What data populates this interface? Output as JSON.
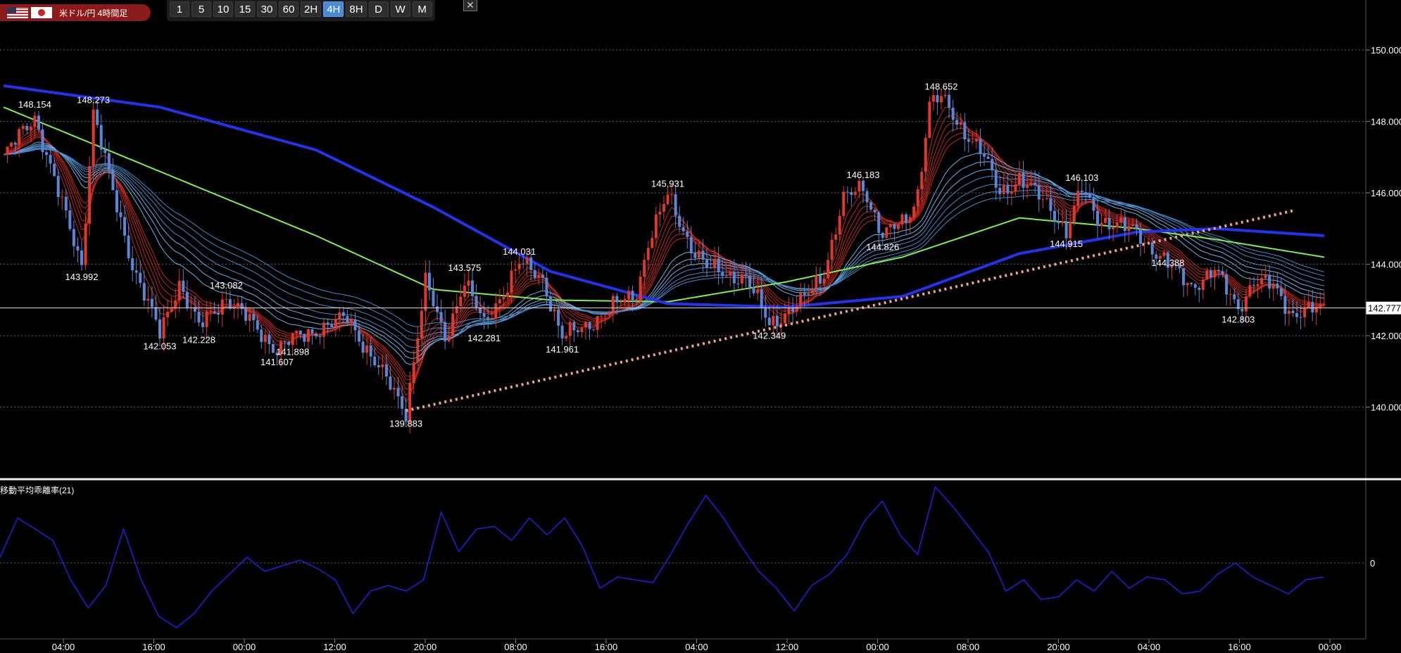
{
  "header": {
    "pair_label": "米ドル/円 4時間足",
    "flags": [
      "us-flag-icon",
      "jp-flag-icon"
    ],
    "timeframes": [
      "1",
      "5",
      "10",
      "15",
      "30",
      "60",
      "2H",
      "4H",
      "8H",
      "D",
      "W",
      "M"
    ],
    "active_timeframe": "4H",
    "close_icon": "close-icon"
  },
  "indicator": {
    "label": "移動平均乖離率(21)",
    "zero_label": "0"
  },
  "colors": {
    "up": "#e0392b",
    "down": "#5b86d6",
    "ma_long": "#2233ee",
    "ma_green": "#80ee50",
    "trend": "#f0a090",
    "osc": "#2020e0"
  },
  "chart_data": {
    "type": "candlestick",
    "ylim": [
      138.2,
      151.4
    ],
    "y_ticks": [
      "150.000",
      "148.000",
      "146.000",
      "144.000",
      "142.000",
      "140.000"
    ],
    "x_ticks": [
      "04:00",
      "16:00",
      "00:00",
      "12:00",
      "20:00",
      "08:00",
      "16:00",
      "04:00",
      "12:00",
      "00:00",
      "08:00",
      "20:00",
      "04:00",
      "16:00",
      "00:00"
    ],
    "current_price": "142.777",
    "current_value": 142.777,
    "annotations": [
      {
        "label": "148.154",
        "v": 148.154
      },
      {
        "label": "148.273",
        "v": 148.273
      },
      {
        "label": "143.992",
        "v": 143.992
      },
      {
        "label": "142.053",
        "v": 142.053
      },
      {
        "label": "142.228",
        "v": 142.228
      },
      {
        "label": "143.082",
        "v": 143.082
      },
      {
        "label": "141.607",
        "v": 141.607
      },
      {
        "label": "141.898",
        "v": 141.898
      },
      {
        "label": "139.883",
        "v": 139.883
      },
      {
        "label": "143.575",
        "v": 143.575
      },
      {
        "label": "142.281",
        "v": 142.281
      },
      {
        "label": "144.031",
        "v": 144.031
      },
      {
        "label": "141.961",
        "v": 141.961
      },
      {
        "label": "145.931",
        "v": 145.931
      },
      {
        "label": "142.349",
        "v": 142.349
      },
      {
        "label": "146.183",
        "v": 146.183
      },
      {
        "label": "144.826",
        "v": 144.826
      },
      {
        "label": "148.652",
        "v": 148.652
      },
      {
        "label": "146.103",
        "v": 146.103
      },
      {
        "label": "144.915",
        "v": 144.915
      },
      {
        "label": "144.388",
        "v": 144.388
      },
      {
        "label": "142.803",
        "v": 142.803
      }
    ],
    "price_path": [
      [
        0,
        147.0
      ],
      [
        8,
        148.15
      ],
      [
        14,
        146.0
      ],
      [
        20,
        143.99
      ],
      [
        23,
        148.27
      ],
      [
        28,
        146.0
      ],
      [
        33,
        144.0
      ],
      [
        40,
        142.05
      ],
      [
        45,
        143.5
      ],
      [
        50,
        142.23
      ],
      [
        57,
        143.08
      ],
      [
        63,
        142.4
      ],
      [
        70,
        141.61
      ],
      [
        74,
        141.9
      ],
      [
        88,
        142.5
      ],
      [
        103,
        139.88
      ],
      [
        108,
        143.5
      ],
      [
        113,
        141.9
      ],
      [
        118,
        143.57
      ],
      [
        123,
        142.28
      ],
      [
        132,
        144.03
      ],
      [
        138,
        143.6
      ],
      [
        143,
        141.96
      ],
      [
        148,
        142.2
      ],
      [
        156,
        142.8
      ],
      [
        162,
        143.2
      ],
      [
        165,
        144.6
      ],
      [
        170,
        145.93
      ],
      [
        176,
        144.5
      ],
      [
        180,
        143.9
      ],
      [
        190,
        143.6
      ],
      [
        196,
        142.35
      ],
      [
        204,
        142.9
      ],
      [
        210,
        143.8
      ],
      [
        215,
        145.8
      ],
      [
        220,
        146.18
      ],
      [
        225,
        144.83
      ],
      [
        231,
        145.2
      ],
      [
        234,
        146.0
      ],
      [
        237,
        148.5
      ],
      [
        240,
        148.65
      ],
      [
        244,
        148.0
      ],
      [
        250,
        147.2
      ],
      [
        255,
        146.0
      ],
      [
        260,
        146.4
      ],
      [
        268,
        145.6
      ],
      [
        272,
        144.92
      ],
      [
        276,
        146.1
      ],
      [
        280,
        145.3
      ],
      [
        290,
        144.9
      ],
      [
        298,
        144.0
      ],
      [
        304,
        143.4
      ],
      [
        310,
        143.8
      ],
      [
        316,
        142.8
      ],
      [
        320,
        143.5
      ],
      [
        325,
        143.4
      ],
      [
        330,
        142.6
      ],
      [
        338,
        142.777
      ]
    ],
    "ma_long": [
      [
        0,
        149.0
      ],
      [
        40,
        148.4
      ],
      [
        80,
        147.2
      ],
      [
        110,
        145.6
      ],
      [
        140,
        143.8
      ],
      [
        170,
        142.9
      ],
      [
        200,
        142.8
      ],
      [
        230,
        143.1
      ],
      [
        260,
        144.3
      ],
      [
        290,
        144.9
      ],
      [
        310,
        145.0
      ],
      [
        338,
        144.8
      ]
    ],
    "ma_green": [
      [
        0,
        148.4
      ],
      [
        40,
        146.6
      ],
      [
        80,
        144.8
      ],
      [
        110,
        143.3
      ],
      [
        140,
        143.0
      ],
      [
        170,
        142.95
      ],
      [
        200,
        143.5
      ],
      [
        230,
        144.2
      ],
      [
        260,
        145.3
      ],
      [
        290,
        145.0
      ],
      [
        310,
        144.7
      ],
      [
        338,
        144.2
      ]
    ],
    "trendline": [
      [
        103,
        139.9
      ],
      [
        330,
        145.5
      ]
    ],
    "oscillator": {
      "ylim": [
        -2.5,
        2.5
      ],
      "values": [
        0.2,
        1.6,
        1.2,
        0.8,
        -0.6,
        -1.6,
        -0.8,
        1.2,
        -0.6,
        -1.9,
        -2.3,
        -1.8,
        -1.0,
        -0.4,
        0.2,
        -0.3,
        -0.1,
        0.1,
        -0.2,
        -0.6,
        -1.8,
        -1.0,
        -0.8,
        -1.0,
        -0.6,
        1.8,
        0.4,
        1.2,
        1.3,
        0.8,
        1.6,
        1.0,
        1.6,
        0.6,
        -0.9,
        -0.5,
        -0.6,
        -0.7,
        0.3,
        1.4,
        2.4,
        1.6,
        0.6,
        -0.3,
        -0.9,
        -1.7,
        -0.8,
        -0.4,
        0.3,
        1.5,
        2.2,
        1.0,
        0.3,
        2.7,
        2.0,
        1.2,
        0.4,
        -1.0,
        -0.6,
        -1.3,
        -1.2,
        -0.6,
        -1.0,
        -0.3,
        -0.9,
        -0.5,
        -0.6,
        -1.1,
        -1.0,
        -0.4,
        0.0,
        -0.5,
        -0.8,
        -1.1,
        -0.6,
        -0.5
      ],
      "zero": 0
    }
  }
}
